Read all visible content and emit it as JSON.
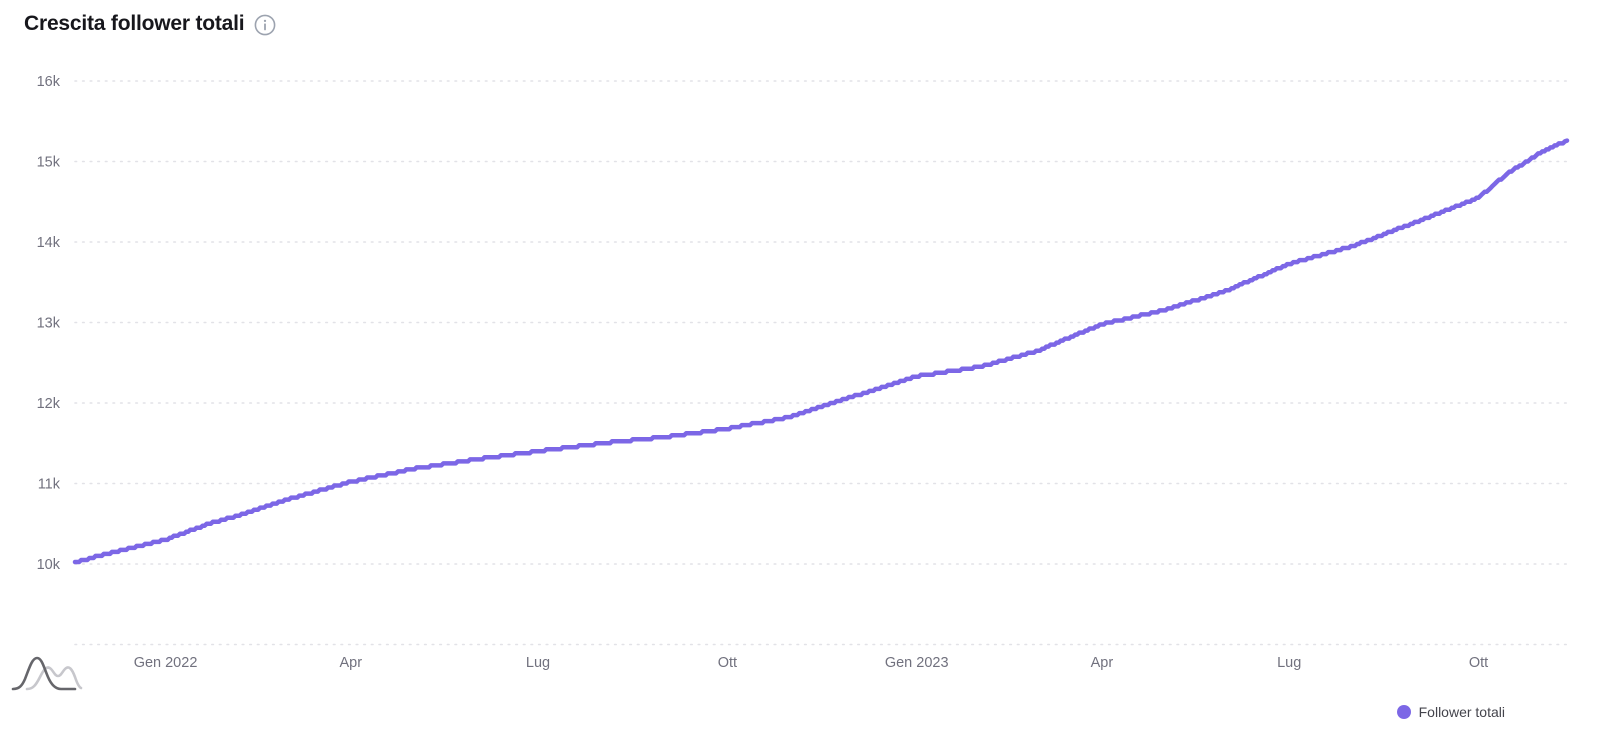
{
  "header": {
    "title": "Crescita follower totali"
  },
  "legend": {
    "label": "Follower totali"
  },
  "colors": {
    "background": "#ffffff",
    "title": "#17171c",
    "line": "#7c67e6",
    "legend_dot": "#7c67e6",
    "legend_text": "#44444c",
    "axis_label": "#71717e",
    "gridline": "#e2e2e7",
    "info_icon": "#9ca3af",
    "logo_dark": "#66666b",
    "logo_light": "#c7c7cc"
  },
  "chart_data": {
    "type": "line",
    "title": "Crescita follower totali",
    "series_name": "Follower totali",
    "x_domain": [
      "2021-11-18",
      "2023-11-13"
    ],
    "y_domain": [
      10000,
      16000
    ],
    "grid": "dotted-horizontal",
    "legend_position": "bottom-right",
    "y_ticks": [
      {
        "label": "16k",
        "value": 16000
      },
      {
        "label": "15k",
        "value": 15000
      },
      {
        "label": "14k",
        "value": 14000
      },
      {
        "label": "13k",
        "value": 13000
      },
      {
        "label": "12k",
        "value": 12000
      },
      {
        "label": "11k",
        "value": 11000
      },
      {
        "label": "10k",
        "value": 10000
      }
    ],
    "x_ticks": [
      {
        "label": "Gen 2022",
        "date": "2022-01-01"
      },
      {
        "label": "Apr",
        "date": "2022-04-01"
      },
      {
        "label": "Lug",
        "date": "2022-07-01"
      },
      {
        "label": "Ott",
        "date": "2022-10-01"
      },
      {
        "label": "Gen 2023",
        "date": "2023-01-01"
      },
      {
        "label": "Apr",
        "date": "2023-04-01"
      },
      {
        "label": "Lug",
        "date": "2023-07-01"
      },
      {
        "label": "Ott",
        "date": "2023-10-01"
      }
    ],
    "series": [
      {
        "name": "Follower totali",
        "points": [
          {
            "date": "2021-11-18",
            "value": 10020
          },
          {
            "date": "2021-12-01",
            "value": 10110
          },
          {
            "date": "2022-01-01",
            "value": 10300
          },
          {
            "date": "2022-01-22",
            "value": 10500
          },
          {
            "date": "2022-02-01",
            "value": 10570
          },
          {
            "date": "2022-03-01",
            "value": 10800
          },
          {
            "date": "2022-04-01",
            "value": 11020
          },
          {
            "date": "2022-05-01",
            "value": 11180
          },
          {
            "date": "2022-06-01",
            "value": 11300
          },
          {
            "date": "2022-07-01",
            "value": 11400
          },
          {
            "date": "2022-08-01",
            "value": 11500
          },
          {
            "date": "2022-09-01",
            "value": 11580
          },
          {
            "date": "2022-10-01",
            "value": 11680
          },
          {
            "date": "2022-11-01",
            "value": 11830
          },
          {
            "date": "2022-12-01",
            "value": 12080
          },
          {
            "date": "2023-01-01",
            "value": 12330
          },
          {
            "date": "2023-02-01",
            "value": 12450
          },
          {
            "date": "2023-03-01",
            "value": 12650
          },
          {
            "date": "2023-04-01",
            "value": 12980
          },
          {
            "date": "2023-05-01",
            "value": 13150
          },
          {
            "date": "2023-06-01",
            "value": 13400
          },
          {
            "date": "2023-07-01",
            "value": 13730
          },
          {
            "date": "2023-08-01",
            "value": 13950
          },
          {
            "date": "2023-09-01",
            "value": 14250
          },
          {
            "date": "2023-10-01",
            "value": 14550
          },
          {
            "date": "2023-10-15",
            "value": 14850
          },
          {
            "date": "2023-11-01",
            "value": 15120
          },
          {
            "date": "2023-11-13",
            "value": 15260
          }
        ]
      }
    ]
  }
}
